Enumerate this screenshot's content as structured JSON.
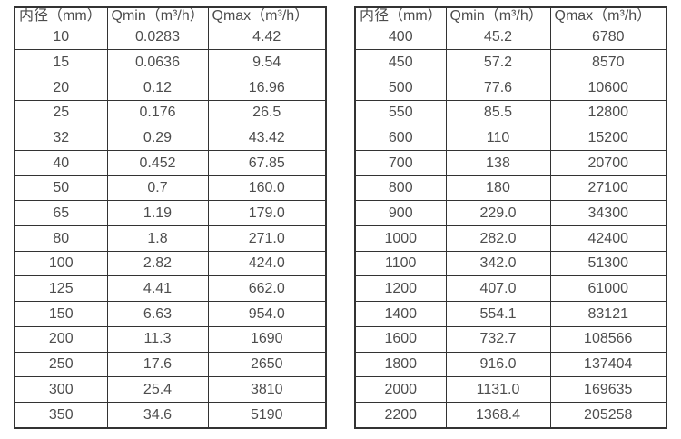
{
  "colors": {
    "background": "#ffffff",
    "border": "#333333",
    "text": "#4d4d4d"
  },
  "tables": [
    {
      "name": "flow-table-small-diameters",
      "headers": [
        "内径（mm）",
        "Qmin（m³/h）",
        "Qmax（m³/h）"
      ],
      "rows": [
        [
          "10",
          "0.0283",
          "4.42"
        ],
        [
          "15",
          "0.0636",
          "9.54"
        ],
        [
          "20",
          "0.12",
          "16.96"
        ],
        [
          "25",
          "0.176",
          "26.5"
        ],
        [
          "32",
          "0.29",
          "43.42"
        ],
        [
          "40",
          "0.452",
          "67.85"
        ],
        [
          "50",
          "0.7",
          "160.0"
        ],
        [
          "65",
          "1.19",
          "179.0"
        ],
        [
          "80",
          "1.8",
          "271.0"
        ],
        [
          "100",
          "2.82",
          "424.0"
        ],
        [
          "125",
          "4.41",
          "662.0"
        ],
        [
          "150",
          "6.63",
          "954.0"
        ],
        [
          "200",
          "11.3",
          "1690"
        ],
        [
          "250",
          "17.6",
          "2650"
        ],
        [
          "300",
          "25.4",
          "3810"
        ],
        [
          "350",
          "34.6",
          "5190"
        ]
      ]
    },
    {
      "name": "flow-table-large-diameters",
      "headers": [
        "内径（mm）",
        "Qmin（m³/h）",
        "Qmax（m³/h）"
      ],
      "rows": [
        [
          "400",
          "45.2",
          "6780"
        ],
        [
          "450",
          "57.2",
          "8570"
        ],
        [
          "500",
          "77.6",
          "10600"
        ],
        [
          "550",
          "85.5",
          "12800"
        ],
        [
          "600",
          "110",
          "15200"
        ],
        [
          "700",
          "138",
          "20700"
        ],
        [
          "800",
          "180",
          "27100"
        ],
        [
          "900",
          "229.0",
          "34300"
        ],
        [
          "1000",
          "282.0",
          "42400"
        ],
        [
          "1100",
          "342.0",
          "51300"
        ],
        [
          "1200",
          "407.0",
          "61000"
        ],
        [
          "1400",
          "554.1",
          "83121"
        ],
        [
          "1600",
          "732.7",
          "108566"
        ],
        [
          "1800",
          "916.0",
          "137404"
        ],
        [
          "2000",
          "1131.0",
          "169635"
        ],
        [
          "2200",
          "1368.4",
          "205258"
        ]
      ]
    }
  ]
}
